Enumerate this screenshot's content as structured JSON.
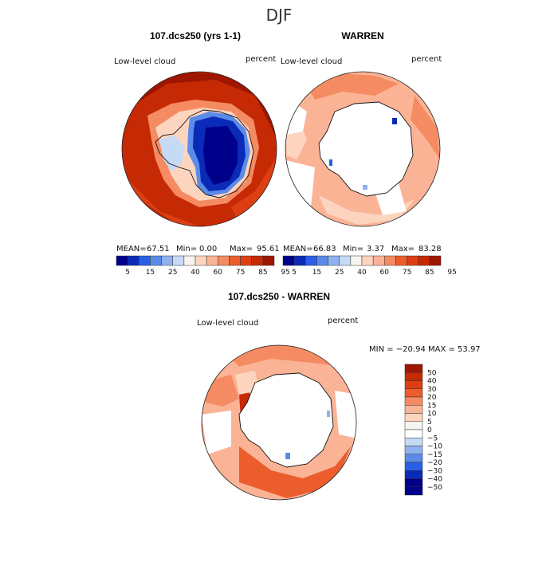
{
  "figure": {
    "title": "DJF"
  },
  "palette": {
    "levels": [
      "5",
      "15",
      "25",
      "40",
      "60",
      "75",
      "85",
      "95"
    ],
    "colors": [
      "#00008b",
      "#0a2bb8",
      "#2a5ee6",
      "#5a8be8",
      "#8fb1ef",
      "#c6daf6",
      "#f7f3ee",
      "#fdd5bf",
      "#fbb396",
      "#f58b63",
      "#ec5d2e",
      "#dd3e12",
      "#c52a05",
      "#9e1500"
    ]
  },
  "diff_palette": {
    "levels": [
      "50",
      "40",
      "30",
      "20",
      "15",
      "10",
      "5",
      "0",
      "−5",
      "−10",
      "−15",
      "−20",
      "−30",
      "−40",
      "−50"
    ],
    "colors": [
      "#9e1500",
      "#c52a05",
      "#dd3e12",
      "#ec5d2e",
      "#f58b63",
      "#fbb396",
      "#fdd5bf",
      "#f7f3ee",
      "#ffffff",
      "#c6daf6",
      "#8fb1ef",
      "#5a8be8",
      "#2a5ee6",
      "#0a2bb8",
      "#00008b",
      "#00008b"
    ]
  },
  "panels": {
    "p1": {
      "title": "107.dcs250 (yrs 1-1)",
      "variable": "Low-level cloud",
      "units": "percent",
      "stats": {
        "mean_label": "MEAN=",
        "mean": "67.51",
        "min_label": "Min=",
        "min": "0.00",
        "max_label": "Max=",
        "max": "95.61"
      }
    },
    "p2": {
      "title": "WARREN",
      "variable": "Low-level cloud",
      "units": "percent",
      "stats": {
        "mean_label": "MEAN=",
        "mean": "66.83",
        "min_label": "Min=",
        "min": "3.37",
        "max_label": "Max=",
        "max": "83.28"
      }
    },
    "p3": {
      "title": "107.dcs250 - WARREN",
      "variable": "Low-level cloud",
      "units": "percent",
      "minmax": "MIN = −20.94  MAX =  53.97"
    }
  },
  "chart_data": [
    {
      "type": "heatmap",
      "title": "107.dcs250 (yrs 1-1)",
      "projection": "south-polar stereographic",
      "variable": "Low-level cloud",
      "units": "percent",
      "mean": 67.51,
      "min": 0.0,
      "max": 95.61,
      "colorbar_levels": [
        5,
        15,
        25,
        40,
        60,
        75,
        85,
        95
      ]
    },
    {
      "type": "heatmap",
      "title": "WARREN",
      "projection": "south-polar stereographic",
      "variable": "Low-level cloud",
      "units": "percent",
      "mean": 66.83,
      "min": 3.37,
      "max": 83.28,
      "colorbar_levels": [
        5,
        15,
        25,
        40,
        60,
        75,
        85,
        95
      ]
    },
    {
      "type": "heatmap",
      "title": "107.dcs250 - WARREN",
      "projection": "south-polar stereographic",
      "variable": "Low-level cloud",
      "units": "percent",
      "min": -20.94,
      "max": 53.97,
      "colorbar_levels": [
        50,
        40,
        30,
        20,
        15,
        10,
        5,
        0,
        -5,
        -10,
        -15,
        -20,
        -30,
        -40,
        -50
      ]
    }
  ]
}
